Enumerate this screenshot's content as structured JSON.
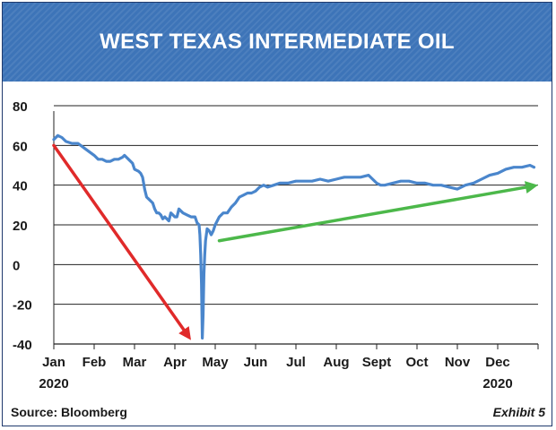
{
  "title": "WEST TEXAS INTERMEDIATE OIL",
  "source": "Source: Bloomberg",
  "exhibit": "Exhibit 5",
  "colors": {
    "banner": "#3d74b8",
    "line": "#4a86cc",
    "down_arrow": "#e02a2a",
    "up_arrow": "#4cb84a"
  },
  "chart_data": {
    "type": "line",
    "title": "WEST TEXAS INTERMEDIATE OIL",
    "xlabel": "",
    "ylabel": "",
    "ylim": [
      -40,
      80
    ],
    "yticks": [
      80,
      60,
      40,
      20,
      0,
      -20,
      -40
    ],
    "ytick_labels": [
      "80",
      "60",
      "40",
      "20",
      "0",
      "-20",
      "-40"
    ],
    "xlim": [
      0,
      12
    ],
    "xticks": [
      {
        "label": "Jan",
        "year": "2020",
        "pos": 0
      },
      {
        "label": "Feb",
        "pos": 1
      },
      {
        "label": "Mar",
        "pos": 2
      },
      {
        "label": "Apr",
        "pos": 3
      },
      {
        "label": "May",
        "pos": 4
      },
      {
        "label": "Jun",
        "pos": 5
      },
      {
        "label": "Jul",
        "pos": 6
      },
      {
        "label": "Aug",
        "pos": 7
      },
      {
        "label": "Sept",
        "pos": 8
      },
      {
        "label": "Oct",
        "pos": 9
      },
      {
        "label": "Nov",
        "pos": 10
      },
      {
        "label": "Dec",
        "year": "2020",
        "pos": 11
      }
    ],
    "grid": "horizontal",
    "series": [
      {
        "x": [
          0,
          0.1,
          0.2,
          0.3,
          0.45,
          0.6,
          0.8,
          1.0,
          1.1,
          1.2,
          1.3,
          1.4,
          1.5,
          1.6,
          1.7,
          1.75,
          1.85,
          1.95,
          2.0,
          2.1,
          2.15,
          2.2,
          2.25,
          2.3,
          2.35,
          2.45,
          2.5,
          2.55,
          2.6,
          2.65,
          2.7,
          2.75,
          2.8,
          2.85,
          2.9,
          2.95,
          3.0,
          3.05,
          3.1,
          3.2,
          3.3,
          3.4,
          3.5,
          3.55,
          3.6,
          3.62,
          3.64,
          3.66,
          3.68,
          3.7,
          3.72,
          3.74,
          3.76,
          3.8,
          3.85,
          3.9,
          3.95,
          4.0,
          4.1,
          4.2,
          4.3,
          4.4,
          4.5,
          4.6,
          4.7,
          4.8,
          4.9,
          5.0,
          5.1,
          5.2,
          5.3,
          5.45,
          5.6,
          5.8,
          6.0,
          6.2,
          6.4,
          6.6,
          6.8,
          7.0,
          7.2,
          7.4,
          7.6,
          7.8,
          7.9,
          8.0,
          8.1,
          8.2,
          8.4,
          8.6,
          8.8,
          9.0,
          9.2,
          9.4,
          9.6,
          9.8,
          10.0,
          10.2,
          10.4,
          10.6,
          10.8,
          11.0,
          11.2,
          11.4,
          11.6,
          11.8,
          11.9
        ],
        "values": [
          63,
          65,
          64,
          62,
          61,
          61,
          58,
          55,
          53,
          53,
          52,
          52,
          53,
          53,
          54,
          55,
          53,
          51,
          48,
          47,
          46,
          44,
          38,
          34,
          33,
          31,
          28,
          26,
          26,
          25,
          23,
          24,
          23,
          22,
          26,
          25,
          24,
          24,
          28,
          26,
          25,
          24,
          24,
          21,
          20,
          15,
          5,
          -10,
          -37,
          -25,
          -5,
          5,
          12,
          18,
          17,
          15,
          17,
          20,
          24,
          26,
          26,
          29,
          31,
          34,
          35,
          36,
          36,
          37,
          39,
          40,
          39,
          40,
          41,
          41,
          42,
          42,
          42,
          43,
          42,
          43,
          44,
          44,
          44,
          45,
          43,
          41,
          40,
          40,
          41,
          42,
          42,
          41,
          41,
          40,
          40,
          39,
          38,
          40,
          41,
          43,
          45,
          46,
          48,
          49,
          49,
          50,
          49
        ]
      }
    ],
    "annotations": [
      {
        "type": "arrow",
        "color": "red",
        "from": [
          0,
          60
        ],
        "to": [
          3.4,
          -38
        ]
      },
      {
        "type": "arrow",
        "color": "green",
        "from": [
          4.1,
          12
        ],
        "to": [
          12,
          40
        ]
      }
    ]
  }
}
